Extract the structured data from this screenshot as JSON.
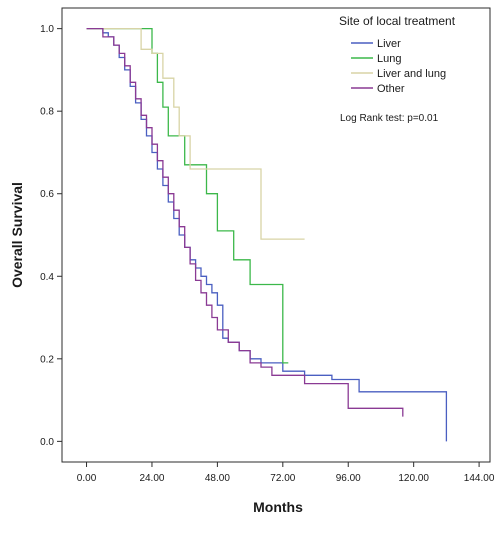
{
  "chart_data": {
    "type": "line",
    "subtype": "kaplan-meier step curve",
    "xlabel": "Months",
    "ylabel": "Overall Survival",
    "xlim": [
      -9,
      148
    ],
    "ylim": [
      -0.05,
      1.05
    ],
    "xticks": [
      0,
      24,
      48,
      72,
      96,
      120,
      144
    ],
    "xtick_labels": [
      "0.00",
      "24.00",
      "48.00",
      "72.00",
      "96.00",
      "120.00",
      "144.00"
    ],
    "yticks": [
      0,
      0.2,
      0.4,
      0.6,
      0.8,
      1.0
    ],
    "ytick_labels": [
      "0.0",
      "0.2",
      "0.4",
      "0.6",
      "0.8",
      "1.0"
    ],
    "grid": false,
    "legend_title": "Site of local treatment",
    "legend_position": "top-right",
    "annotation": "Log Rank test: p=0.01",
    "series": [
      {
        "name": "Liver",
        "color": "#4a5fc1",
        "x": [
          0,
          6,
          8,
          10,
          12,
          14,
          16,
          18,
          20,
          22,
          24,
          26,
          28,
          30,
          32,
          34,
          36,
          38,
          40,
          42,
          44,
          46,
          48,
          50,
          52,
          56,
          60,
          64,
          72,
          80,
          90,
          100,
          110,
          132
        ],
        "y": [
          1.0,
          0.99,
          0.98,
          0.96,
          0.93,
          0.9,
          0.86,
          0.82,
          0.78,
          0.74,
          0.7,
          0.66,
          0.62,
          0.58,
          0.54,
          0.5,
          0.47,
          0.44,
          0.42,
          0.4,
          0.38,
          0.36,
          0.33,
          0.25,
          0.24,
          0.22,
          0.2,
          0.19,
          0.17,
          0.16,
          0.15,
          0.12,
          0.12,
          0.0
        ]
      },
      {
        "name": "Lung",
        "color": "#3cb84a",
        "x": [
          0,
          24,
          26,
          28,
          30,
          36,
          44,
          48,
          54,
          60,
          72,
          74
        ],
        "y": [
          1.0,
          0.94,
          0.87,
          0.81,
          0.74,
          0.67,
          0.6,
          0.51,
          0.44,
          0.38,
          0.19,
          0.19
        ]
      },
      {
        "name": "Liver and lung",
        "color": "#d8d4a6",
        "x": [
          0,
          20,
          24,
          28,
          32,
          34,
          38,
          64,
          80
        ],
        "y": [
          1.0,
          0.95,
          0.94,
          0.88,
          0.81,
          0.74,
          0.66,
          0.49,
          0.49
        ]
      },
      {
        "name": "Other",
        "color": "#8a3a94",
        "x": [
          0,
          6,
          10,
          12,
          14,
          16,
          18,
          20,
          22,
          24,
          26,
          28,
          30,
          32,
          34,
          36,
          38,
          40,
          42,
          44,
          46,
          48,
          52,
          56,
          60,
          64,
          68,
          80,
          96,
          116
        ],
        "y": [
          1.0,
          0.98,
          0.96,
          0.94,
          0.91,
          0.87,
          0.83,
          0.79,
          0.76,
          0.72,
          0.68,
          0.64,
          0.6,
          0.56,
          0.52,
          0.47,
          0.43,
          0.39,
          0.36,
          0.33,
          0.3,
          0.27,
          0.24,
          0.22,
          0.19,
          0.18,
          0.16,
          0.14,
          0.08,
          0.06
        ]
      }
    ]
  }
}
